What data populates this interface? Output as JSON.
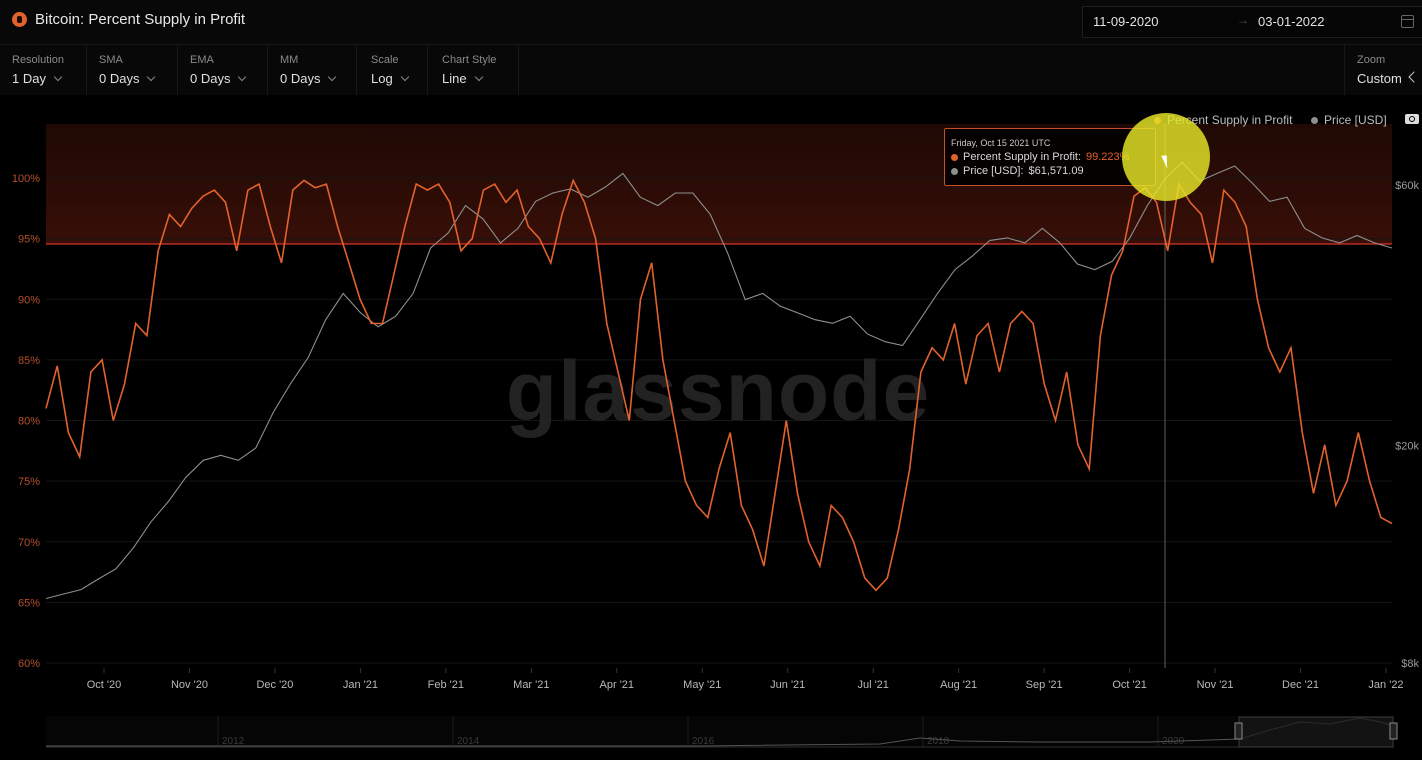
{
  "header": {
    "title": "Bitcoin: Percent Supply in Profit",
    "start_date": "11-09-2020",
    "end_date": "03-01-2022",
    "date_separator": "→"
  },
  "controls": [
    {
      "label": "Resolution",
      "value": "1 Day"
    },
    {
      "label": "SMA",
      "value": "0 Days"
    },
    {
      "label": "EMA",
      "value": "0 Days"
    },
    {
      "label": "MM",
      "value": "0 Days"
    },
    {
      "label": "Scale",
      "value": "Log"
    },
    {
      "label": "Chart Style",
      "value": "Line"
    }
  ],
  "zoom": {
    "label": "Zoom",
    "value": "Custom"
  },
  "watermark": "glassnode",
  "tooltip": {
    "date": "Friday, Oct 15 2021 UTC",
    "supply_label": "Percent Supply in Profit:",
    "supply_value": "99.223%",
    "price_label": "Price [USD]:",
    "price_value": "$61,571.09"
  },
  "icons": {
    "coin": "bitcoin-icon",
    "calendar": "calendar-icon",
    "camera": "camera-icon",
    "nav": "chevron-left-icon"
  },
  "colors": {
    "supply": "#e2622c",
    "price": "#8f8f8f",
    "threshold": "#d8352a",
    "halo": "#e8e828"
  },
  "chart_data": {
    "type": "line",
    "y_left_ticks": [
      "100%",
      "95%",
      "90%",
      "85%",
      "80%",
      "75%",
      "70%",
      "65%",
      "60%"
    ],
    "y_left_values": [
      100,
      95,
      90,
      85,
      80,
      75,
      70,
      65,
      60
    ],
    "y_right_ticks": [
      "$60k",
      "$20k",
      "$8k"
    ],
    "y_right_values": [
      60000,
      20000,
      8000
    ],
    "x_ticks": [
      "Oct '20",
      "Nov '20",
      "Dec '20",
      "Jan '21",
      "Feb '21",
      "Mar '21",
      "Apr '21",
      "May '21",
      "Jun '21",
      "Jul '21",
      "Aug '21",
      "Sep '21",
      "Oct '21",
      "Nov '21",
      "Dec '21",
      "Jan '22"
    ],
    "ylim_left": [
      60,
      100
    ],
    "threshold": 95,
    "highlight_zone": [
      95,
      100
    ],
    "legend": [
      "Percent Supply in Profit",
      "Price [USD]"
    ],
    "legend_position": "top-right",
    "series": [
      {
        "name": "Percent Supply in Profit",
        "color": "#e2622c",
        "axis": "left",
        "values": [
          81,
          84.5,
          79,
          77,
          84,
          85,
          80,
          83,
          88,
          87,
          94,
          97,
          96,
          97.5,
          98.5,
          99,
          98,
          94,
          99,
          99.5,
          96,
          93,
          99,
          99.8,
          99.2,
          99.5,
          96,
          93,
          90,
          88,
          88,
          92,
          96,
          99.5,
          99,
          99.5,
          98,
          94,
          95,
          99,
          99.5,
          98,
          99,
          96,
          95,
          93,
          97,
          99.8,
          98,
          95,
          88,
          84,
          80,
          90,
          93,
          85,
          80,
          75,
          73,
          72,
          76,
          79,
          73,
          71,
          68,
          74,
          80,
          74,
          70,
          68,
          73,
          72,
          70,
          67,
          66,
          67,
          71,
          76,
          84,
          86,
          85,
          88,
          83,
          87,
          88,
          84,
          88,
          89,
          88,
          83,
          80,
          84,
          78,
          76,
          87,
          92,
          94,
          98.5,
          99.2,
          98,
          94,
          99.5,
          98,
          97,
          93,
          99,
          98,
          96,
          90,
          86,
          84,
          86,
          79,
          74,
          78,
          73,
          75,
          79,
          75,
          72,
          71.5
        ],
        "note_label": ""
      },
      {
        "name": "Price [USD]",
        "color": "#8f8f8f",
        "axis": "right",
        "values": [
          10500,
          10700,
          10900,
          11400,
          11900,
          13000,
          14500,
          15800,
          17500,
          18800,
          19200,
          18800,
          19800,
          23000,
          26000,
          29000,
          34000,
          38000,
          35000,
          33000,
          34500,
          38000,
          46000,
          49000,
          55000,
          52000,
          47000,
          50000,
          56000,
          58000,
          59000,
          57000,
          59500,
          63000,
          57000,
          55000,
          58000,
          58000,
          53000,
          45000,
          37000,
          38000,
          36000,
          35000,
          34000,
          33500,
          34500,
          32000,
          31000,
          30500,
          34000,
          38000,
          42000,
          44500,
          47500,
          48000,
          47000,
          50000,
          47000,
          43000,
          42000,
          43500,
          48000,
          55000,
          61500,
          66000,
          61000,
          63000,
          65000,
          60500,
          56000,
          57000,
          50000,
          48000,
          47000,
          48500,
          47000,
          46000
        ],
        "note_label": ""
      }
    ]
  }
}
